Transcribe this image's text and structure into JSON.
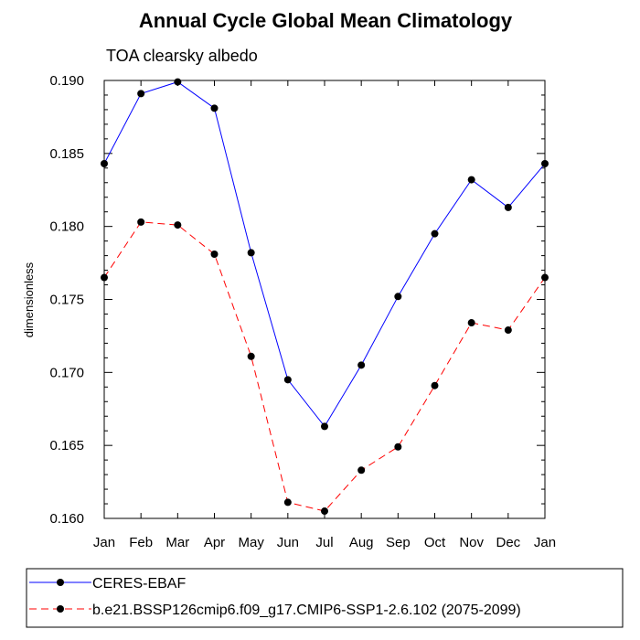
{
  "chart_data": {
    "type": "line",
    "title": "Annual Cycle Global Mean Climatology",
    "subtitle": "TOA clearsky albedo",
    "xlabel": "",
    "ylabel": "dimensionless",
    "categories": [
      "Jan",
      "Feb",
      "Mar",
      "Apr",
      "May",
      "Jun",
      "Jul",
      "Aug",
      "Sep",
      "Oct",
      "Nov",
      "Dec",
      "Jan"
    ],
    "ylim": [
      0.16,
      0.19
    ],
    "yticks": [
      "0.160",
      "0.165",
      "0.170",
      "0.175",
      "0.180",
      "0.185",
      "0.190"
    ],
    "grid": false,
    "legend_position": "bottom",
    "series": [
      {
        "name": "CERES-EBAF",
        "color": "#0000ff",
        "line_style": "solid",
        "marker": "filled-circle",
        "values": [
          0.1843,
          0.1891,
          0.1899,
          0.1881,
          0.1782,
          0.1695,
          0.1663,
          0.1705,
          0.1752,
          0.1795,
          0.1832,
          0.1813,
          0.1843
        ]
      },
      {
        "name": "b.e21.BSSP126cmip6.f09_g17.CMIP6-SSP1-2.6.102 (2075-2099)",
        "color": "#ff0000",
        "line_style": "dashed",
        "marker": "filled-circle",
        "values": [
          0.1765,
          0.1803,
          0.1801,
          0.1781,
          0.1711,
          0.1611,
          0.1605,
          0.1633,
          0.1649,
          0.1691,
          0.1734,
          0.1729,
          0.1765
        ]
      }
    ]
  }
}
